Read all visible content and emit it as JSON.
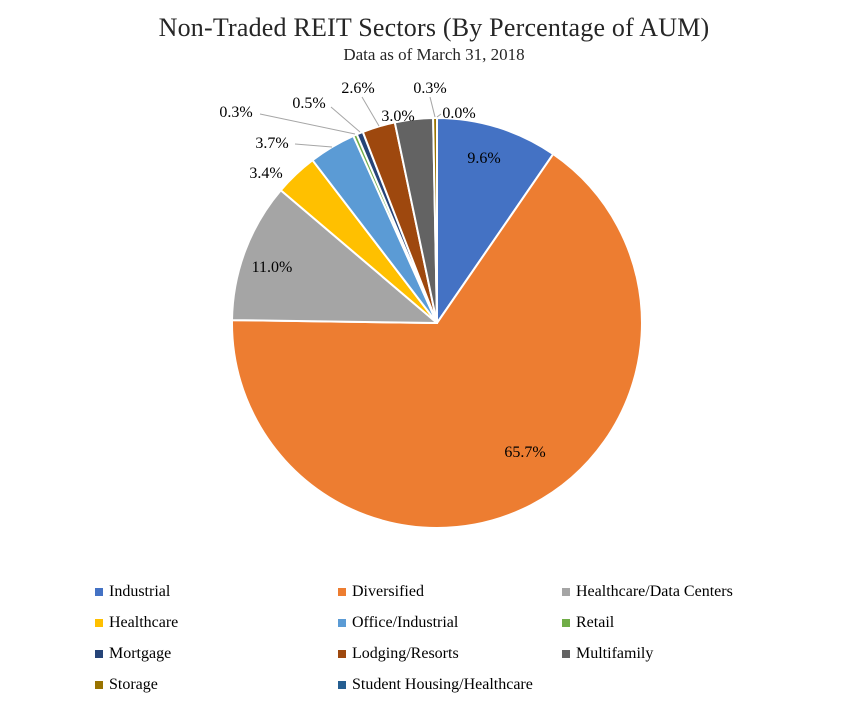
{
  "chart_data": {
    "type": "pie",
    "title": "Non-Traded REIT Sectors (By Percentage of AUM)",
    "subtitle": "Data as of March 31, 2018",
    "legend_position": "bottom",
    "data_label_format": "0.0%",
    "background_color": "#FFFFFF",
    "slices": [
      {
        "label": "Industrial",
        "value": 9.6,
        "display": "9.6%",
        "color": "#4472C4"
      },
      {
        "label": "Diversified",
        "value": 65.7,
        "display": "65.7%",
        "color": "#ED7D31"
      },
      {
        "label": "Healthcare/Data Centers",
        "value": 11.0,
        "display": "11.0%",
        "color": "#A5A5A5"
      },
      {
        "label": "Healthcare",
        "value": 3.4,
        "display": "3.4%",
        "color": "#FFC000"
      },
      {
        "label": "Office/Industrial",
        "value": 3.7,
        "display": "3.7%",
        "color": "#5B9BD5"
      },
      {
        "label": "Retail",
        "value": 0.3,
        "display": "0.3%",
        "color": "#70AD47"
      },
      {
        "label": "Mortgage",
        "value": 0.5,
        "display": "0.5%",
        "color": "#264478"
      },
      {
        "label": "Lodging/Resorts",
        "value": 2.6,
        "display": "2.6%",
        "color": "#9E480E"
      },
      {
        "label": "Multifamily",
        "value": 3.0,
        "display": "3.0%",
        "color": "#636363"
      },
      {
        "label": "Storage",
        "value": 0.3,
        "display": "0.3%",
        "color": "#997300"
      },
      {
        "label": "Student Housing/Healthcare",
        "value": 0.0,
        "display": "0.0%",
        "color": "#255E91"
      }
    ]
  }
}
